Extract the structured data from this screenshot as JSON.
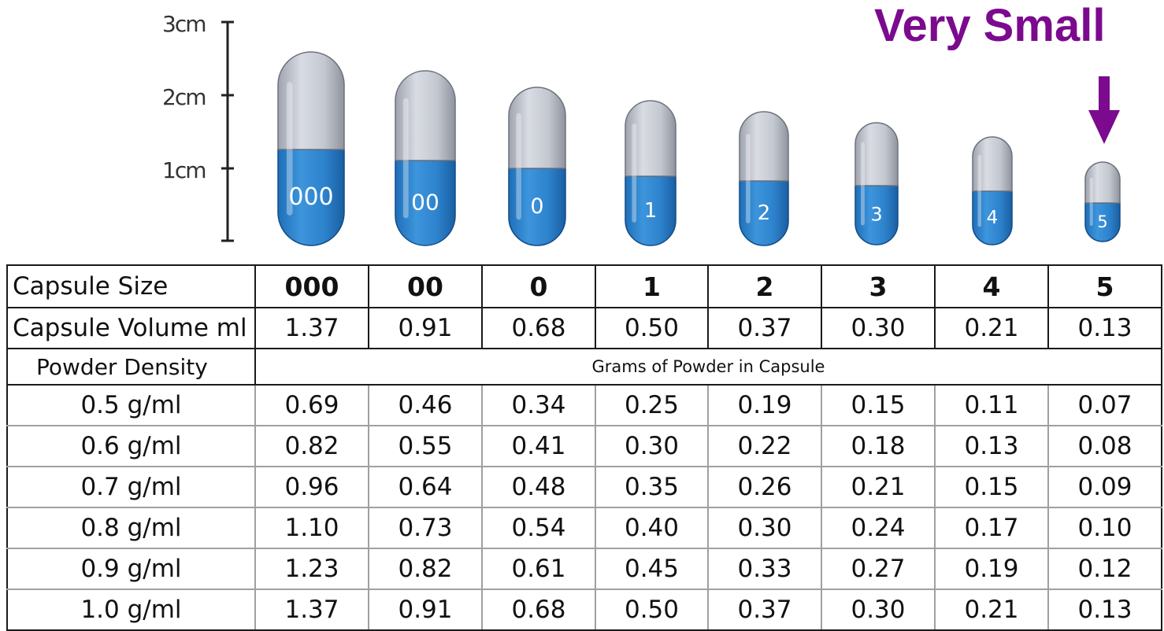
{
  "headline": "Very Small",
  "scale": {
    "ticks": [
      "3cm",
      "2cm",
      "1cm"
    ]
  },
  "capsules": [
    "000",
    "00",
    "0",
    "1",
    "2",
    "3",
    "4",
    "5"
  ],
  "colors": {
    "accent": "#7b0a8f",
    "capsule_cap": "#c9ccd4",
    "capsule_body": "#2f86d1"
  },
  "table": {
    "size_row": {
      "label": "Capsule Size",
      "values": [
        "000",
        "00",
        "0",
        "1",
        "2",
        "3",
        "4",
        "5"
      ]
    },
    "volume_row": {
      "label": "Capsule Volume ml",
      "values": [
        "1.37",
        "0.91",
        "0.68",
        "0.50",
        "0.37",
        "0.30",
        "0.21",
        "0.13"
      ]
    },
    "section": {
      "label": "Powder Density",
      "caption": "Grams of Powder in Capsule"
    },
    "rows": [
      {
        "label": "0.5 g/ml",
        "values": [
          "0.69",
          "0.46",
          "0.34",
          "0.25",
          "0.19",
          "0.15",
          "0.11",
          "0.07"
        ]
      },
      {
        "label": "0.6 g/ml",
        "values": [
          "0.82",
          "0.55",
          "0.41",
          "0.30",
          "0.22",
          "0.18",
          "0.13",
          "0.08"
        ]
      },
      {
        "label": "0.7 g/ml",
        "values": [
          "0.96",
          "0.64",
          "0.48",
          "0.35",
          "0.26",
          "0.21",
          "0.15",
          "0.09"
        ]
      },
      {
        "label": "0.8 g/ml",
        "values": [
          "1.10",
          "0.73",
          "0.54",
          "0.40",
          "0.30",
          "0.24",
          "0.17",
          "0.10"
        ]
      },
      {
        "label": "0.9 g/ml",
        "values": [
          "1.23",
          "0.82",
          "0.61",
          "0.45",
          "0.33",
          "0.27",
          "0.19",
          "0.12"
        ]
      },
      {
        "label": "1.0 g/ml",
        "values": [
          "1.37",
          "0.91",
          "0.68",
          "0.50",
          "0.37",
          "0.30",
          "0.21",
          "0.13"
        ]
      }
    ]
  }
}
